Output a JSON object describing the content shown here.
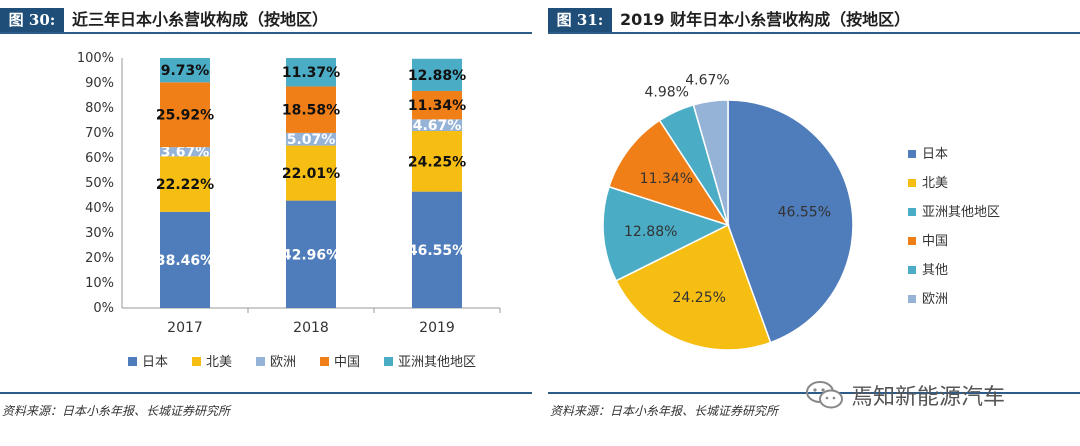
{
  "left_figure": {
    "label": "图 30:",
    "title": "近三年日本小糸营收构成（按地区）",
    "source": "资料来源：日本小糸年报、长城证券研究所"
  },
  "right_figure": {
    "label": "图 31:",
    "title": "2019 财年日本小糸营收构成（按地区）",
    "source": "资料来源：日本小糸年报、长城证券研究所"
  },
  "watermark": {
    "text": "焉知新能源汽车",
    "icon": "wechat-icon"
  },
  "colors": {
    "日本": "#4f7cba",
    "北美": "#f6be13",
    "欧洲": "#95b3d7",
    "中国": "#f07f17",
    "亚洲其他地区": "#4bacc6",
    "其他": "#4bacc6",
    "rule": "#2e5c8a",
    "label_bg": "#1f4e79"
  },
  "chart_data": [
    {
      "type": "bar",
      "stacked": true,
      "normalized": true,
      "categories": [
        "2017",
        "2018",
        "2019"
      ],
      "series": [
        {
          "name": "日本",
          "values": [
            38.46,
            42.96,
            46.55
          ],
          "labels": [
            "38.46%",
            "42.96%",
            "46.55%"
          ]
        },
        {
          "name": "北美",
          "values": [
            22.22,
            22.01,
            24.25
          ],
          "labels": [
            "22.22%",
            "22.01%",
            "24.25%"
          ]
        },
        {
          "name": "欧洲",
          "values": [
            3.67,
            5.07,
            4.67
          ],
          "labels": [
            "3.67%",
            "5.07%",
            "4.67%"
          ]
        },
        {
          "name": "中国",
          "values": [
            25.92,
            18.58,
            11.34
          ],
          "labels": [
            "25.92%",
            "18.58%",
            "11.34%"
          ]
        },
        {
          "name": "亚洲其他地区",
          "values": [
            9.73,
            11.37,
            12.88
          ],
          "labels": [
            "9.73%",
            "11.37%",
            "12.88%"
          ]
        }
      ],
      "yticks": [
        "0%",
        "10%",
        "20%",
        "30%",
        "40%",
        "50%",
        "60%",
        "70%",
        "80%",
        "90%",
        "100%"
      ],
      "ylim": [
        0,
        100
      ],
      "legend": [
        "日本",
        "北美",
        "欧洲",
        "中国",
        "亚洲其他地区"
      ],
      "legend_position": "bottom"
    },
    {
      "type": "pie",
      "slices": [
        {
          "name": "日本",
          "value": 46.55,
          "label": "46.55%"
        },
        {
          "name": "北美",
          "value": 24.25,
          "label": "24.25%"
        },
        {
          "name": "亚洲其他地区",
          "value": 12.88,
          "label": "12.88%"
        },
        {
          "name": "中国",
          "value": 11.34,
          "label": "11.34%"
        },
        {
          "name": "其他",
          "value": 4.98,
          "label": "4.98%"
        },
        {
          "name": "欧洲",
          "value": 4.67,
          "label": "4.67%"
        }
      ],
      "legend": [
        "日本",
        "北美",
        "亚洲其他地区",
        "中国",
        "其他",
        "欧洲"
      ],
      "legend_position": "right"
    }
  ]
}
